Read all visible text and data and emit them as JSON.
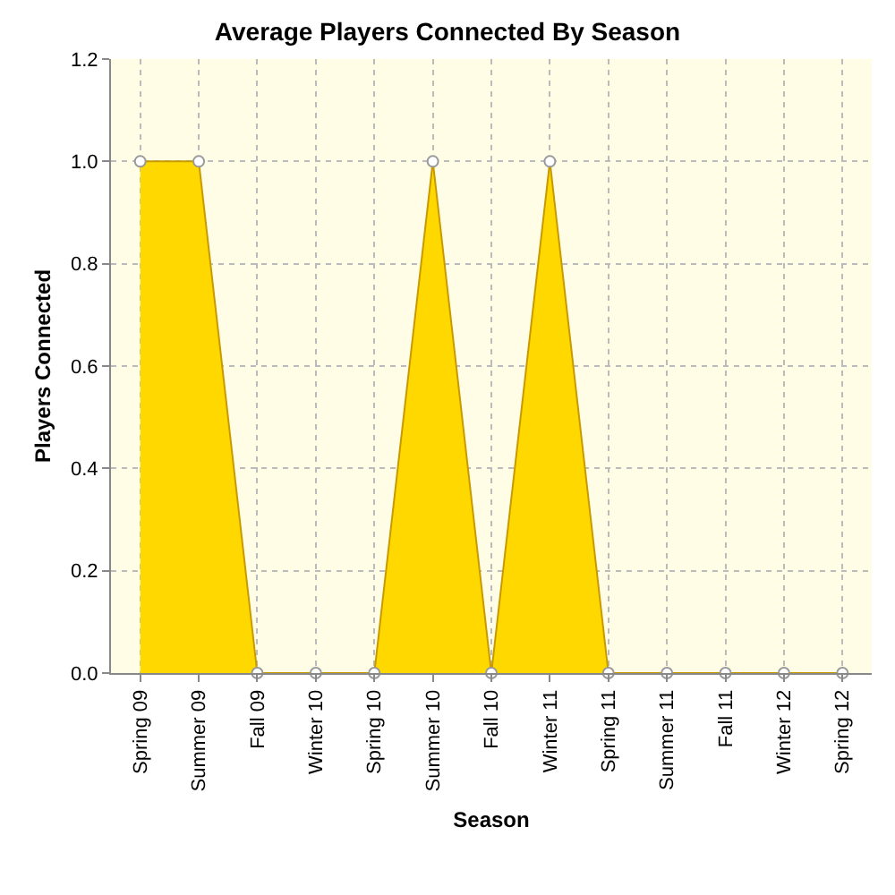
{
  "chart_data": {
    "type": "area",
    "title": "Average Players Connected By Season",
    "xlabel": "Season",
    "ylabel": "Players Connected",
    "categories": [
      "Spring 09",
      "Summer 09",
      "Fall 09",
      "Winter 10",
      "Spring 10",
      "Summer 10",
      "Fall 10",
      "Winter 11",
      "Spring 11",
      "Summer 11",
      "Fall 11",
      "Winter 12",
      "Spring 12"
    ],
    "series": [
      {
        "color": "#ffd800",
        "values": [
          1,
          1,
          0,
          0,
          0,
          1,
          0,
          1,
          0,
          0,
          0,
          0,
          0
        ]
      }
    ],
    "ylim": [
      0,
      1.2
    ],
    "yticks": [
      {
        "value": 0,
        "label": "0.0"
      },
      {
        "value": 0.2,
        "label": "0.2"
      },
      {
        "value": 0.4,
        "label": "0.4"
      },
      {
        "value": 0.6,
        "label": "0.6"
      },
      {
        "value": 0.8,
        "label": "0.8"
      },
      {
        "value": 1,
        "label": "1.0"
      },
      {
        "value": 1.2,
        "label": "1.2"
      }
    ],
    "grid": true,
    "marker": "circle"
  }
}
